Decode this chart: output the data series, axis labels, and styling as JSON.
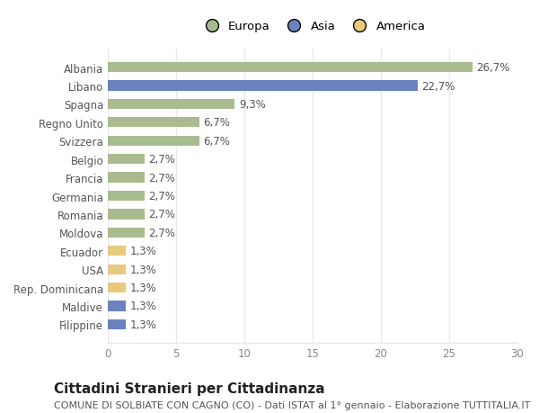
{
  "categories": [
    "Albania",
    "Libano",
    "Spagna",
    "Regno Unito",
    "Svizzera",
    "Belgio",
    "Francia",
    "Germania",
    "Romania",
    "Moldova",
    "Ecuador",
    "USA",
    "Rep. Dominicana",
    "Maldive",
    "Filippine"
  ],
  "values": [
    26.7,
    22.7,
    9.3,
    6.7,
    6.7,
    2.7,
    2.7,
    2.7,
    2.7,
    2.7,
    1.3,
    1.3,
    1.3,
    1.3,
    1.3
  ],
  "labels": [
    "26,7%",
    "22,7%",
    "9,3%",
    "6,7%",
    "6,7%",
    "2,7%",
    "2,7%",
    "2,7%",
    "2,7%",
    "2,7%",
    "1,3%",
    "1,3%",
    "1,3%",
    "1,3%",
    "1,3%"
  ],
  "colors": [
    "#a8bc8f",
    "#6b82bf",
    "#a8bc8f",
    "#a8bc8f",
    "#a8bc8f",
    "#a8bc8f",
    "#a8bc8f",
    "#a8bc8f",
    "#a8bc8f",
    "#a8bc8f",
    "#e8c97e",
    "#e8c97e",
    "#e8c97e",
    "#6b82bf",
    "#6b82bf"
  ],
  "continent_colors": {
    "Europa": "#a8bc8f",
    "Asia": "#6b82bf",
    "America": "#e8c97e"
  },
  "xlim": [
    0,
    30
  ],
  "xticks": [
    0,
    5,
    10,
    15,
    20,
    25,
    30
  ],
  "title": "Cittadini Stranieri per Cittadinanza",
  "subtitle": "COMUNE DI SOLBIATE CON CAGNO (CO) - Dati ISTAT al 1° gennaio - Elaborazione TUTTITALIA.IT",
  "background_color": "#ffffff",
  "grid_color": "#e8e8e8",
  "bar_height": 0.55,
  "title_fontsize": 11,
  "subtitle_fontsize": 8,
  "label_fontsize": 8.5,
  "tick_fontsize": 8.5,
  "legend_fontsize": 9.5
}
